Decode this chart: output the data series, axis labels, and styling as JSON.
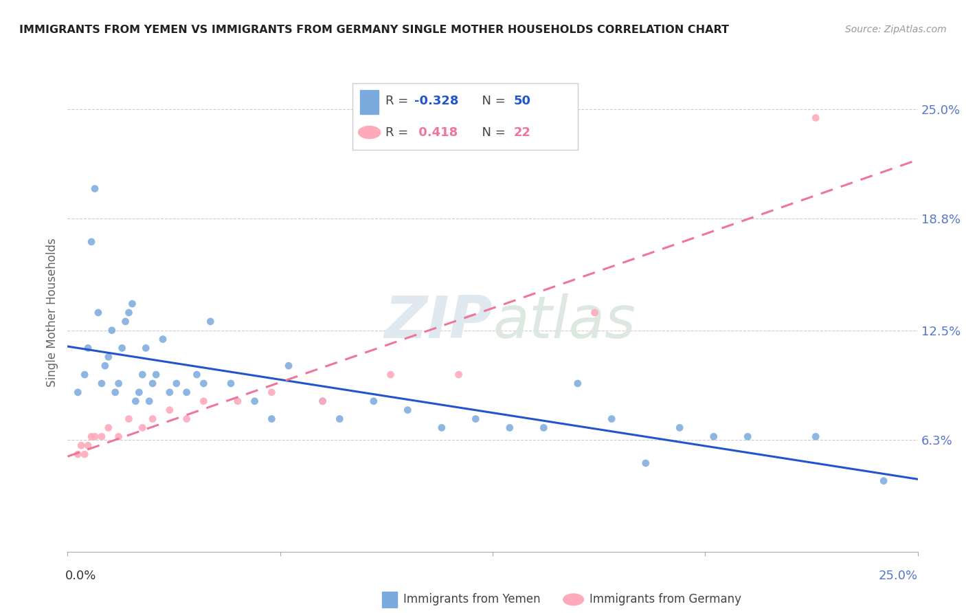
{
  "title": "IMMIGRANTS FROM YEMEN VS IMMIGRANTS FROM GERMANY SINGLE MOTHER HOUSEHOLDS CORRELATION CHART",
  "source": "Source: ZipAtlas.com",
  "ylabel": "Single Mother Households",
  "ytick_labels": [
    "6.3%",
    "12.5%",
    "18.8%",
    "25.0%"
  ],
  "ytick_values": [
    0.063,
    0.125,
    0.188,
    0.25
  ],
  "xmin": 0.0,
  "xmax": 0.25,
  "ymin": 0.0,
  "ymax": 0.27,
  "color_yemen": "#7AAADD",
  "color_germany": "#FFAABB",
  "color_trendline_yemen": "#2255CC",
  "color_trendline_germany": "#EE7799",
  "yemen_x": [
    0.003,
    0.005,
    0.006,
    0.007,
    0.008,
    0.009,
    0.01,
    0.011,
    0.012,
    0.013,
    0.014,
    0.015,
    0.016,
    0.017,
    0.018,
    0.019,
    0.02,
    0.021,
    0.022,
    0.023,
    0.024,
    0.025,
    0.026,
    0.028,
    0.03,
    0.032,
    0.035,
    0.038,
    0.04,
    0.042,
    0.048,
    0.055,
    0.06,
    0.065,
    0.075,
    0.08,
    0.09,
    0.1,
    0.11,
    0.12,
    0.13,
    0.14,
    0.15,
    0.16,
    0.17,
    0.18,
    0.19,
    0.2,
    0.22,
    0.24
  ],
  "yemen_y": [
    0.09,
    0.1,
    0.115,
    0.175,
    0.205,
    0.135,
    0.095,
    0.105,
    0.11,
    0.125,
    0.09,
    0.095,
    0.115,
    0.13,
    0.135,
    0.14,
    0.085,
    0.09,
    0.1,
    0.115,
    0.085,
    0.095,
    0.1,
    0.12,
    0.09,
    0.095,
    0.09,
    0.1,
    0.095,
    0.13,
    0.095,
    0.085,
    0.075,
    0.105,
    0.085,
    0.075,
    0.085,
    0.08,
    0.07,
    0.075,
    0.07,
    0.07,
    0.095,
    0.075,
    0.05,
    0.07,
    0.065,
    0.065,
    0.065,
    0.04
  ],
  "germany_x": [
    0.003,
    0.004,
    0.005,
    0.006,
    0.007,
    0.008,
    0.01,
    0.012,
    0.015,
    0.018,
    0.022,
    0.025,
    0.03,
    0.035,
    0.04,
    0.05,
    0.06,
    0.075,
    0.095,
    0.115,
    0.155,
    0.22
  ],
  "germany_y": [
    0.055,
    0.06,
    0.055,
    0.06,
    0.065,
    0.065,
    0.065,
    0.07,
    0.065,
    0.075,
    0.07,
    0.075,
    0.08,
    0.075,
    0.085,
    0.085,
    0.09,
    0.085,
    0.1,
    0.1,
    0.135,
    0.245
  ],
  "legend_r1": "-0.328",
  "legend_n1": "50",
  "legend_r2": "0.418",
  "legend_n2": "22"
}
